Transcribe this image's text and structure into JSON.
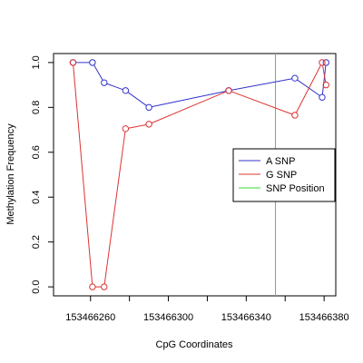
{
  "chart_data": {
    "type": "line",
    "xlabel": "CpG Coordinates",
    "ylabel": "Methylation Frequency",
    "xlim": [
      153466241,
      153466386
    ],
    "ylim": [
      -0.04,
      1.04
    ],
    "x_ticks": [
      153466260,
      153466300,
      153466340,
      153466380
    ],
    "x_tick_labels": [
      "153466260",
      "153466300",
      "153466340",
      "153466380"
    ],
    "y_ticks": [
      0,
      0.2,
      0.4,
      0.6,
      0.8,
      1
    ],
    "y_tick_labels": [
      "0.0",
      "0.2",
      "0.4",
      "0.6",
      "0.8",
      "1.0"
    ],
    "grid": false,
    "legend_position": "right",
    "series": [
      {
        "name": "A SNP",
        "color": "#3333cc",
        "x": [
          153466251,
          153466261,
          153466267,
          153466278,
          153466290,
          153466331,
          153466365,
          153466379,
          153466381
        ],
        "y": [
          1.0,
          1.0,
          0.91,
          0.875,
          0.8,
          0.875,
          0.93,
          0.845,
          1.0
        ]
      },
      {
        "name": "G SNP",
        "color": "#dd3333",
        "x": [
          153466251,
          153466261,
          153466267,
          153466278,
          153466290,
          153466331,
          153466365,
          153466379,
          153466381
        ],
        "y": [
          1.0,
          0.0,
          0.0,
          0.705,
          0.725,
          0.875,
          0.765,
          1.0,
          0.9
        ]
      }
    ],
    "vertical_lines": [
      {
        "name": "SNP Position",
        "color": "#33dd33",
        "x": 153466355
      }
    ],
    "legend": [
      {
        "label": "A SNP",
        "color": "#3333cc"
      },
      {
        "label": "G SNP",
        "color": "#dd3333"
      },
      {
        "label": "SNP Position",
        "color": "#33dd33"
      }
    ]
  }
}
